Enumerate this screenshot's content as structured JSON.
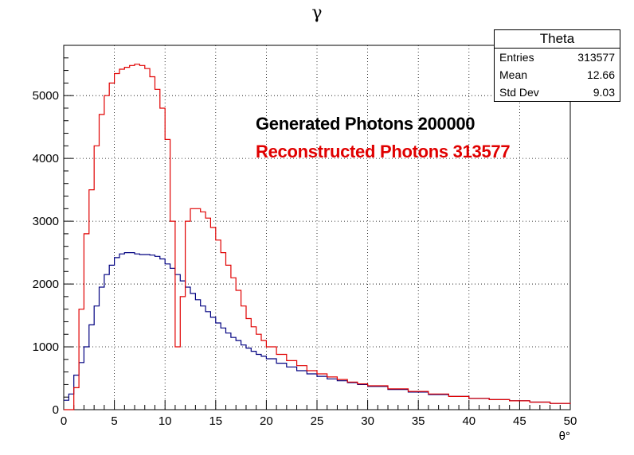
{
  "chart_data": {
    "type": "line",
    "title": "γ",
    "xlabel": "θ°",
    "ylabel": "",
    "xlim": [
      0,
      50
    ],
    "ylim": [
      0,
      5800
    ],
    "x_ticks": [
      0,
      5,
      10,
      15,
      20,
      25,
      30,
      35,
      40,
      45,
      50
    ],
    "y_ticks": [
      0,
      1000,
      2000,
      3000,
      4000,
      5000
    ],
    "grid": true,
    "x_points": [
      0,
      0.5,
      1,
      1.5,
      2,
      2.5,
      3,
      3.5,
      4,
      4.5,
      5,
      5.5,
      6,
      6.5,
      7,
      7.5,
      8,
      8.5,
      9,
      9.5,
      10,
      10.5,
      11,
      11.5,
      12,
      12.5,
      13,
      13.5,
      14,
      14.5,
      15,
      15.5,
      16,
      16.5,
      17,
      17.5,
      18,
      18.5,
      19,
      19.5,
      20,
      21,
      22,
      23,
      24,
      25,
      26,
      27,
      28,
      29,
      30,
      32,
      34,
      36,
      38,
      40,
      42,
      44,
      46,
      48,
      50
    ],
    "series": [
      {
        "name": "Generated Photons 200000",
        "color": "#000080",
        "values": [
          150,
          250,
          550,
          750,
          1000,
          1350,
          1650,
          1950,
          2150,
          2300,
          2420,
          2480,
          2500,
          2500,
          2480,
          2470,
          2470,
          2460,
          2440,
          2400,
          2320,
          2250,
          2150,
          2050,
          1950,
          1850,
          1750,
          1650,
          1560,
          1470,
          1380,
          1300,
          1220,
          1150,
          1100,
          1030,
          980,
          930,
          880,
          850,
          810,
          740,
          680,
          620,
          570,
          530,
          490,
          460,
          430,
          400,
          370,
          320,
          280,
          240,
          210,
          180,
          160,
          140,
          120,
          100,
          90
        ]
      },
      {
        "name": "Reconstructed Photons 313577",
        "color": "#e00000",
        "values": [
          0,
          0,
          350,
          1600,
          2800,
          3500,
          4200,
          4700,
          5000,
          5200,
          5350,
          5420,
          5450,
          5480,
          5500,
          5480,
          5430,
          5300,
          5100,
          4800,
          4300,
          3000,
          1000,
          1800,
          3000,
          3200,
          3200,
          3150,
          3050,
          2900,
          2700,
          2500,
          2300,
          2100,
          1900,
          1650,
          1450,
          1320,
          1200,
          1100,
          1000,
          880,
          780,
          700,
          620,
          570,
          520,
          480,
          440,
          410,
          380,
          330,
          290,
          250,
          210,
          180,
          160,
          140,
          120,
          100,
          90
        ]
      }
    ]
  },
  "stats": {
    "title": "Theta",
    "rows": [
      {
        "label": "Entries",
        "value": "313577"
      },
      {
        "label": "Mean",
        "value": "12.66"
      },
      {
        "label": "Std Dev",
        "value": "9.03"
      }
    ]
  },
  "legend_colors": {
    "generated": "#000000",
    "reconstructed": "#e00000"
  }
}
